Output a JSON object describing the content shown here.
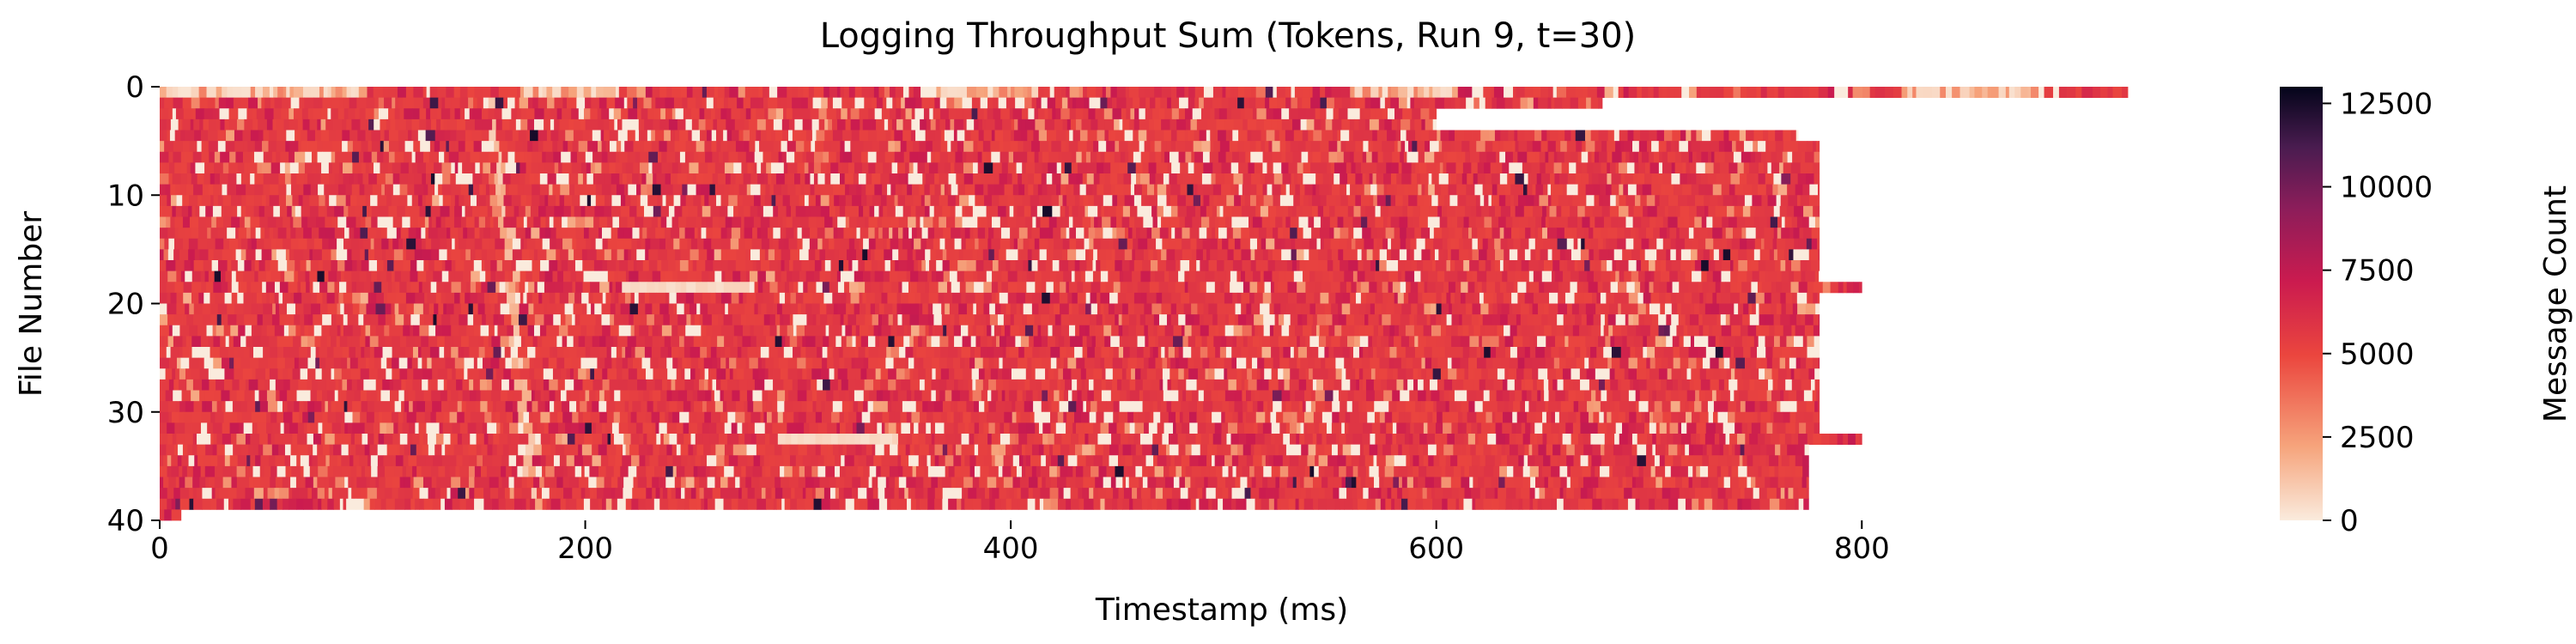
{
  "chart_data": {
    "type": "heatmap",
    "title": "Logging Throughput Sum (Tokens, Run 9, t=30)",
    "xlabel": "Timestamp (ms)",
    "ylabel": "File Number",
    "xlim": [
      0,
      925
    ],
    "ylim": [
      0,
      40
    ],
    "x_ticks": [
      "0",
      "200",
      "400",
      "600",
      "800"
    ],
    "y_ticks": [
      "0",
      "10",
      "20",
      "30",
      "40"
    ],
    "colorbar": {
      "label": "Message Count",
      "min": 0,
      "max": 13000,
      "ticks": [
        "0",
        "2500",
        "5000",
        "7500",
        "10000",
        "12500"
      ],
      "colors": [
        "#faebdd",
        "#f6a47c",
        "#eb463e",
        "#cb1b4f",
        "#8c1d5a",
        "#4a1c50",
        "#03051a"
      ]
    },
    "typical_value": 5200,
    "row_extents_ms": [
      {
        "rows": "0",
        "end": 925
      },
      {
        "rows": "1",
        "end": 678
      },
      {
        "rows": "2-3",
        "end": 600
      },
      {
        "rows": "4",
        "end": 770
      },
      {
        "rows": "5-17",
        "end": 780
      },
      {
        "rows": "18",
        "end": 800
      },
      {
        "rows": "19-31",
        "end": 780
      },
      {
        "rows": "32",
        "end": 800
      },
      {
        "rows": "33-38",
        "end": 775
      },
      {
        "rows": "39",
        "end": 10
      }
    ],
    "notable_features": {
      "row_0_light_segments_ms": [
        [
          0,
          95
        ],
        [
          168,
          215
        ],
        [
          365,
          410
        ],
        [
          555,
          610
        ],
        [
          818,
          880
        ]
      ],
      "light_streak_row_18_ms": [
        215,
        275
      ],
      "light_streak_row_32_ms": [
        290,
        345
      ],
      "light_diagonal_line_ms": [
        [
          155,
          0
        ],
        [
          175,
          40
        ]
      ]
    }
  }
}
